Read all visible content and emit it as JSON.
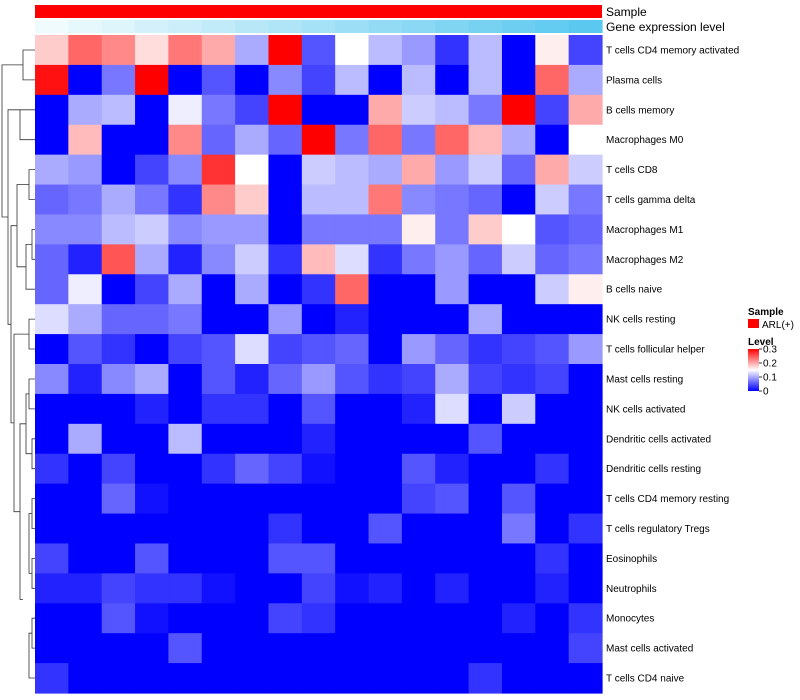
{
  "chart_data": {
    "type": "heatmap",
    "title": "",
    "annotations": {
      "sample": {
        "label": "Sample",
        "value": "ARL(+)",
        "color": "#ff0000"
      },
      "gene_expression": {
        "label": "Gene expression level",
        "color_low": "#f0fbfd",
        "color_high": "#5bc8f0"
      }
    },
    "color_scale": {
      "low": "#0000ff",
      "mid": "#ffffff",
      "high": "#ff0000",
      "min": 0,
      "max": 0.3
    },
    "legend": {
      "sample_title": "Sample",
      "sample_entry": "ARL(+)",
      "level_title": "Level",
      "ticks": [
        {
          "value": 0.3,
          "label": "0.3"
        },
        {
          "value": 0.2,
          "label": "0.2"
        },
        {
          "value": 0.1,
          "label": "0.1"
        },
        {
          "value": 0.0,
          "label": "0"
        }
      ]
    },
    "columns": 17,
    "rows": [
      "T cells CD4 memory activated",
      "Plasma cells",
      "B cells memory",
      "Macrophages M0",
      "T cells CD8",
      "T cells gamma delta",
      "Macrophages M1",
      "Macrophages M2",
      "B cells naive",
      "NK cells resting",
      "T cells follicular helper",
      "Mast cells resting",
      "NK cells activated",
      "Dendritic cells activated",
      "Dendritic cells resting",
      "T cells CD4 memory resting",
      "T cells regulatory  Tregs",
      "Eosinophils",
      "Neutrophils",
      "Monocytes",
      "Mast cells activated",
      "T cells CD4 naive"
    ],
    "values": [
      [
        0.18,
        0.24,
        0.22,
        0.17,
        0.23,
        0.2,
        0.1,
        0.3,
        0.05,
        0.15,
        0.11,
        0.09,
        0.03,
        0.11,
        0.0,
        0.16,
        0.04
      ],
      [
        0.29,
        0.0,
        0.07,
        0.3,
        0.0,
        0.05,
        0.0,
        0.08,
        0.04,
        0.11,
        0.0,
        0.11,
        0.0,
        0.11,
        0.0,
        0.24,
        0.1
      ],
      [
        0.0,
        0.1,
        0.11,
        0.0,
        0.14,
        0.07,
        0.04,
        0.3,
        0.0,
        0.0,
        0.2,
        0.12,
        0.11,
        0.07,
        0.3,
        0.04,
        0.2
      ],
      [
        0.0,
        0.19,
        0.0,
        0.0,
        0.22,
        0.06,
        0.1,
        0.06,
        0.3,
        0.07,
        0.24,
        0.07,
        0.24,
        0.19,
        0.1,
        0.0,
        0.15
      ],
      [
        0.1,
        0.09,
        0.0,
        0.04,
        0.08,
        0.27,
        0.15,
        0.0,
        0.12,
        0.11,
        0.1,
        0.2,
        0.09,
        0.12,
        0.06,
        0.2,
        0.12
      ],
      [
        0.06,
        0.07,
        0.1,
        0.07,
        0.03,
        0.22,
        0.18,
        0.0,
        0.11,
        0.11,
        0.23,
        0.08,
        0.07,
        0.06,
        0.0,
        0.12,
        0.07
      ],
      [
        0.08,
        0.08,
        0.11,
        0.12,
        0.08,
        0.09,
        0.09,
        0.0,
        0.07,
        0.07,
        0.07,
        0.16,
        0.07,
        0.18,
        0.15,
        0.05,
        0.06
      ],
      [
        0.06,
        0.02,
        0.25,
        0.1,
        0.02,
        0.08,
        0.12,
        0.03,
        0.19,
        0.13,
        0.03,
        0.07,
        0.09,
        0.06,
        0.12,
        0.06,
        0.07
      ],
      [
        0.06,
        0.14,
        0.0,
        0.04,
        0.1,
        0.0,
        0.1,
        0.0,
        0.03,
        0.24,
        0.0,
        0.0,
        0.09,
        0.0,
        0.0,
        0.12,
        0.16
      ],
      [
        0.13,
        0.1,
        0.06,
        0.06,
        0.07,
        0.0,
        0.0,
        0.09,
        0.0,
        0.02,
        0.0,
        0.0,
        0.0,
        0.1,
        0.0,
        0.0,
        0.0
      ],
      [
        0.0,
        0.05,
        0.03,
        0.0,
        0.04,
        0.05,
        0.13,
        0.04,
        0.05,
        0.06,
        0.0,
        0.09,
        0.06,
        0.03,
        0.04,
        0.05,
        0.09
      ],
      [
        0.08,
        0.02,
        0.08,
        0.1,
        0.0,
        0.05,
        0.02,
        0.06,
        0.09,
        0.05,
        0.03,
        0.04,
        0.1,
        0.04,
        0.03,
        0.04,
        0.0
      ],
      [
        0.0,
        0.0,
        0.0,
        0.02,
        0.0,
        0.03,
        0.03,
        0.0,
        0.05,
        0.0,
        0.0,
        0.02,
        0.13,
        0.0,
        0.12,
        0.0,
        0.0
      ],
      [
        0.0,
        0.1,
        0.0,
        0.0,
        0.11,
        0.0,
        0.0,
        0.0,
        0.02,
        0.0,
        0.0,
        0.0,
        0.0,
        0.05,
        0.0,
        0.0,
        0.0
      ],
      [
        0.03,
        0.0,
        0.04,
        0.0,
        0.0,
        0.03,
        0.06,
        0.04,
        0.01,
        0.0,
        0.0,
        0.05,
        0.02,
        0.0,
        0.0,
        0.03,
        0.0
      ],
      [
        0.0,
        0.0,
        0.06,
        0.01,
        0.0,
        0.0,
        0.0,
        0.0,
        0.0,
        0.0,
        0.0,
        0.04,
        0.05,
        0.0,
        0.05,
        0.0,
        0.0
      ],
      [
        0.0,
        0.0,
        0.0,
        0.0,
        0.0,
        0.0,
        0.0,
        0.03,
        0.0,
        0.0,
        0.05,
        0.0,
        0.0,
        0.0,
        0.07,
        0.0,
        0.03
      ],
      [
        0.04,
        0.0,
        0.0,
        0.05,
        0.0,
        0.0,
        0.0,
        0.05,
        0.05,
        0.0,
        0.0,
        0.0,
        0.0,
        0.0,
        0.0,
        0.03,
        0.0
      ],
      [
        0.02,
        0.02,
        0.04,
        0.03,
        0.03,
        0.01,
        0.0,
        0.0,
        0.04,
        0.01,
        0.02,
        0.0,
        0.02,
        0.0,
        0.0,
        0.02,
        0.0
      ],
      [
        0.0,
        0.0,
        0.05,
        0.01,
        0.0,
        0.0,
        0.0,
        0.04,
        0.03,
        0.0,
        0.0,
        0.0,
        0.0,
        0.0,
        0.02,
        0.0,
        0.03
      ],
      [
        0.0,
        0.0,
        0.0,
        0.0,
        0.05,
        0.0,
        0.0,
        0.0,
        0.0,
        0.0,
        0.0,
        0.0,
        0.0,
        0.0,
        0.0,
        0.0,
        0.04
      ],
      [
        0.03,
        0.0,
        0.0,
        0.0,
        0.0,
        0.0,
        0.0,
        0.0,
        0.0,
        0.0,
        0.0,
        0.0,
        0.0,
        0.03,
        0.0,
        0.0,
        0.0
      ]
    ]
  }
}
